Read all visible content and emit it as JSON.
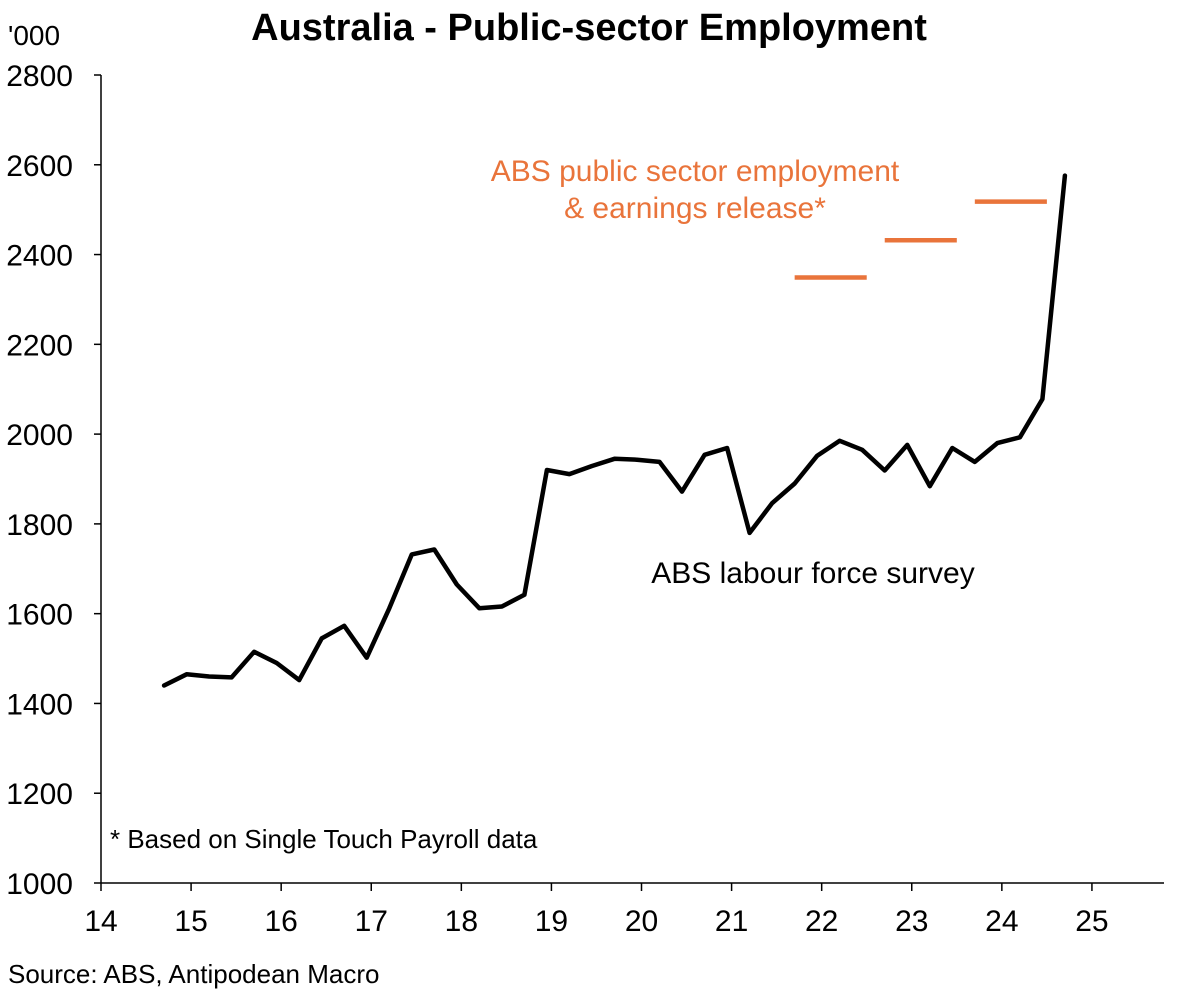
{
  "chart_data": {
    "type": "line",
    "title": "Australia - Public-sector Employment",
    "unit_label": "'000",
    "xlim": [
      14,
      25.8
    ],
    "ylim": [
      1000,
      2800
    ],
    "x_ticks": [
      14,
      15,
      16,
      17,
      18,
      19,
      20,
      21,
      22,
      23,
      24,
      25
    ],
    "x_tick_labels": [
      "14",
      "15",
      "16",
      "17",
      "18",
      "19",
      "20",
      "21",
      "22",
      "23",
      "24",
      "25"
    ],
    "y_ticks": [
      1000,
      1200,
      1400,
      1600,
      1800,
      2000,
      2200,
      2400,
      2600,
      2800
    ],
    "y_tick_labels": [
      "1000",
      "1200",
      "1400",
      "1600",
      "1800",
      "2000",
      "2200",
      "2400",
      "2600",
      "2800"
    ],
    "grid": false,
    "series": [
      {
        "label": "ABS labour force survey",
        "color": "#000000",
        "style": "line",
        "x": [
          14.7,
          14.95,
          15.2,
          15.45,
          15.7,
          15.95,
          16.2,
          16.45,
          16.7,
          16.95,
          17.2,
          17.45,
          17.7,
          17.95,
          18.2,
          18.45,
          18.7,
          18.95,
          19.2,
          19.45,
          19.7,
          19.95,
          20.2,
          20.45,
          20.7,
          20.95,
          21.2,
          21.45,
          21.7,
          21.95,
          22.2,
          22.45,
          22.7,
          22.95,
          23.2,
          23.45,
          23.7,
          23.95,
          24.2,
          24.45,
          24.7
        ],
        "y": [
          1440,
          1465,
          1460,
          1458,
          1515,
          1490,
          1452,
          1545,
          1573,
          1502,
          1612,
          1732,
          1743,
          1665,
          1612,
          1616,
          1642,
          1920,
          1911,
          1929,
          1945,
          1943,
          1938,
          1872,
          1954,
          1969,
          1780,
          1846,
          1890,
          1952,
          1985,
          1965,
          1919,
          1976,
          1884,
          1969,
          1938,
          1980,
          1993,
          2078,
          2576
        ]
      },
      {
        "label": "ABS public sector employment\n& earnings release*",
        "color": "#E9743B",
        "style": "segments",
        "segments": [
          {
            "x": [
              21.7,
              22.5
            ],
            "y": 2349
          },
          {
            "x": [
              22.7,
              23.5
            ],
            "y": 2432
          },
          {
            "x": [
              23.7,
              24.5
            ],
            "y": 2518
          }
        ]
      }
    ],
    "annotations": {
      "orange_label_line1": "ABS public sector employment",
      "orange_label_line2": "& earnings release*",
      "black_label": "ABS labour force survey",
      "footnote": "* Based on Single Touch Payroll data"
    },
    "source": "Source: ABS, Antipodean Macro"
  }
}
